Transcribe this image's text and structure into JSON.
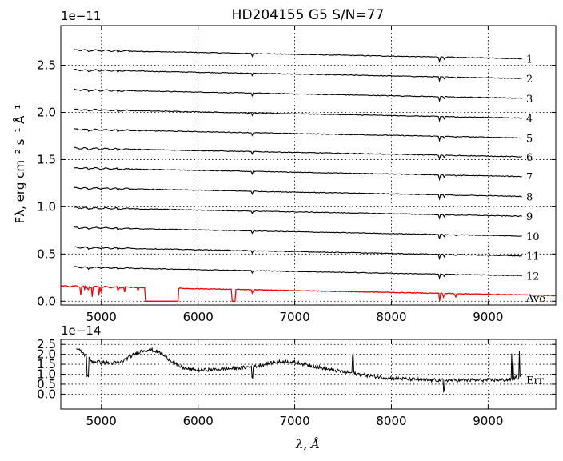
{
  "chart_data": [
    {
      "type": "line",
      "title": "HD204155  G5  S/N=77",
      "ylabel": "Fλ, erg cm⁻² s⁻¹ Å⁻¹",
      "y_multiplier": "1e−11",
      "xlim": [
        4580,
        9700
      ],
      "ylim": [
        -0.04,
        2.92
      ],
      "xticks": [
        5000,
        6000,
        7000,
        8000,
        9000
      ],
      "xtick_labels": [
        "5000",
        "6000",
        "7000",
        "8000",
        "9000"
      ],
      "yticks": [
        0.0,
        0.5,
        1.0,
        1.5,
        2.0,
        2.5
      ],
      "ytick_labels": [
        "0.0",
        "0.5",
        "1.0",
        "1.5",
        "2.0",
        "2.5"
      ],
      "grid": true,
      "series": [
        {
          "name": "1",
          "x_range": [
            4720,
            9350
          ],
          "y_start": 2.66,
          "y_end": 2.57
        },
        {
          "name": "2",
          "x_range": [
            4720,
            9350
          ],
          "y_start": 2.45,
          "y_end": 2.36
        },
        {
          "name": "3",
          "x_range": [
            4720,
            9350
          ],
          "y_start": 2.24,
          "y_end": 2.15
        },
        {
          "name": "4",
          "x_range": [
            4720,
            9350
          ],
          "y_start": 2.03,
          "y_end": 1.94
        },
        {
          "name": "5",
          "x_range": [
            4720,
            9350
          ],
          "y_start": 1.82,
          "y_end": 1.73
        },
        {
          "name": "6",
          "x_range": [
            4720,
            9350
          ],
          "y_start": 1.62,
          "y_end": 1.53
        },
        {
          "name": "7",
          "x_range": [
            4720,
            9350
          ],
          "y_start": 1.41,
          "y_end": 1.32
        },
        {
          "name": "8",
          "x_range": [
            4720,
            9350
          ],
          "y_start": 1.2,
          "y_end": 1.11
        },
        {
          "name": "9",
          "x_range": [
            4720,
            9350
          ],
          "y_start": 0.99,
          "y_end": 0.9
        },
        {
          "name": "10",
          "x_range": [
            4720,
            9350
          ],
          "y_start": 0.78,
          "y_end": 0.69
        },
        {
          "name": "11",
          "x_range": [
            4720,
            9350
          ],
          "y_start": 0.57,
          "y_end": 0.48
        },
        {
          "name": "12",
          "x_range": [
            4720,
            9350
          ],
          "y_start": 0.36,
          "y_end": 0.27
        },
        {
          "name": "Ave",
          "x_range": [
            4580,
            9700
          ],
          "y_start": 0.16,
          "y_end": 0.06
        }
      ],
      "absorption_lines": [
        4861,
        5175,
        6563,
        8498,
        8542,
        8662
      ],
      "colors": {
        "spectra": "#000000",
        "average": "#ff0000"
      }
    },
    {
      "type": "line",
      "y_multiplier": "1e−14",
      "xlabel": "λ, Å",
      "xlim": [
        4580,
        9700
      ],
      "ylim": [
        -0.75,
        2.75
      ],
      "xticks": [
        5000,
        6000,
        7000,
        8000,
        9000
      ],
      "xtick_labels": [
        "5000",
        "6000",
        "7000",
        "8000",
        "9000"
      ],
      "yticks": [
        0.0,
        0.5,
        1.0,
        1.5,
        2.0,
        2.5
      ],
      "ytick_labels": [
        "0.0",
        "0.5",
        "1.0",
        "1.5",
        "2.0",
        "2.5"
      ],
      "grid": true,
      "series": [
        {
          "name": "Err",
          "x": [
            4740,
            4800,
            4900,
            5000,
            5100,
            5200,
            5300,
            5400,
            5500,
            5600,
            5700,
            5800,
            5900,
            6000,
            6200,
            6400,
            6600,
            6800,
            6900,
            7000,
            7200,
            7400,
            7600,
            7800,
            8000,
            8200,
            8400,
            8600,
            8800,
            9000,
            9200,
            9350
          ],
          "y": [
            2.3,
            2.1,
            1.65,
            1.6,
            1.55,
            1.6,
            1.9,
            2.15,
            2.25,
            2.1,
            1.75,
            1.4,
            1.25,
            1.2,
            1.25,
            1.3,
            1.4,
            1.6,
            1.65,
            1.6,
            1.4,
            1.2,
            1.05,
            0.9,
            0.8,
            0.75,
            0.7,
            0.7,
            0.7,
            0.7,
            0.72,
            0.85
          ]
        }
      ],
      "colors": {
        "err": "#000000"
      }
    }
  ]
}
